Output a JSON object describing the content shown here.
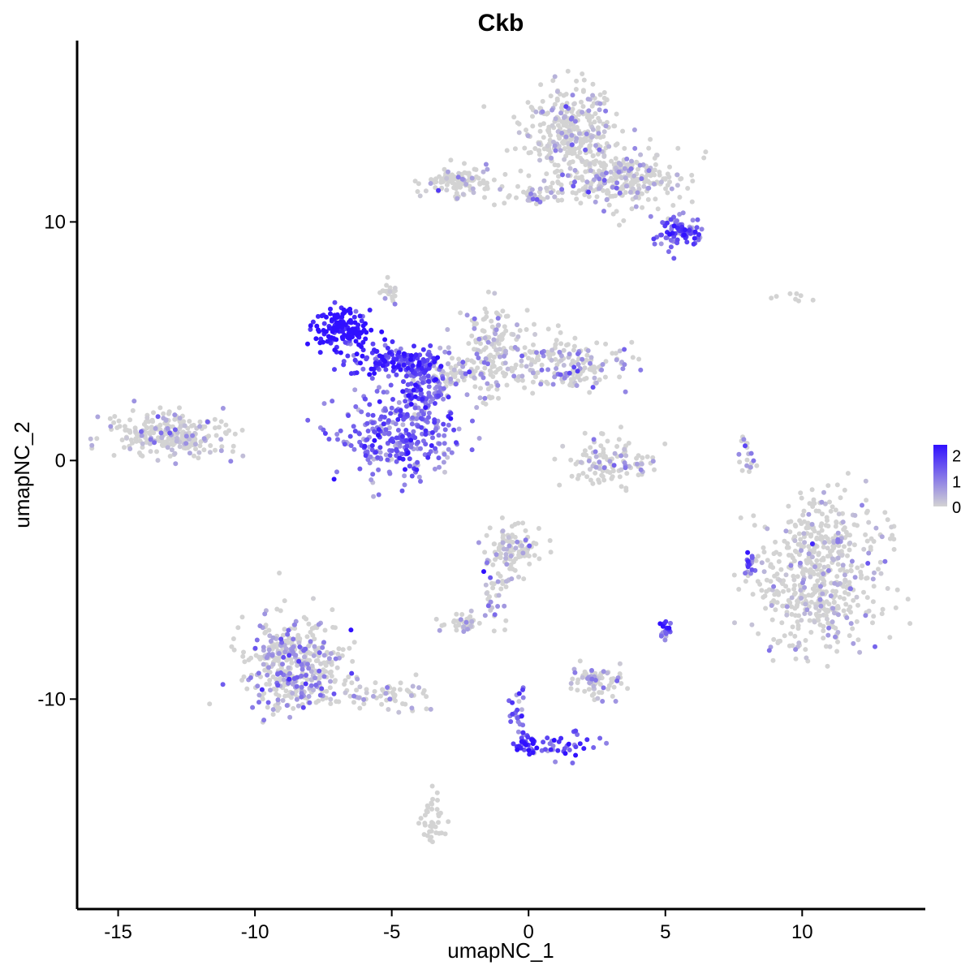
{
  "chart_data": {
    "type": "scatter",
    "title": "Ckb",
    "xlabel": "umapNC_1",
    "ylabel": "umapNC_2",
    "xlim": [
      -16.5,
      14.5
    ],
    "ylim": [
      -18.8,
      17.6
    ],
    "x_ticks": [
      -15,
      -10,
      -5,
      0,
      5,
      10
    ],
    "y_ticks": [
      -10,
      0,
      10
    ],
    "color_scale": {
      "low_color": "#d3d3d3",
      "high_color": "#3010ff",
      "min": 0,
      "max": 2.4,
      "ticks": [
        0,
        1,
        2
      ]
    },
    "grid": false,
    "legend": "right",
    "clusters": [
      {
        "name": "top-right-upper-lobe",
        "cx": 1.5,
        "cy": 13.8,
        "sx": 0.9,
        "sy": 0.9,
        "n": 320,
        "expr": 0.05
      },
      {
        "name": "top-right-body",
        "cx": 3.5,
        "cy": 11.8,
        "sx": 1.2,
        "sy": 0.6,
        "n": 260,
        "expr": 0.35
      },
      {
        "name": "top-right-hotspot",
        "cx": 5.6,
        "cy": 9.6,
        "sx": 0.35,
        "sy": 0.3,
        "n": 90,
        "expr": 1.4
      },
      {
        "name": "top-arm-left",
        "cx": -2.6,
        "cy": 11.7,
        "sx": 0.6,
        "sy": 0.3,
        "n": 110,
        "expr": 0.05
      },
      {
        "name": "top-arm-bridge",
        "cx": 0.2,
        "cy": 11.2,
        "sx": 1.2,
        "sy": 0.2,
        "n": 60,
        "expr": 0.4
      },
      {
        "name": "center-hot-arm",
        "cx": -6.8,
        "cy": 5.5,
        "sx": 0.5,
        "sy": 0.4,
        "n": 140,
        "expr": 2.3
      },
      {
        "name": "center-hot-bridge",
        "cx": -4.8,
        "cy": 4.2,
        "sx": 0.9,
        "sy": 0.35,
        "n": 150,
        "expr": 1.9
      },
      {
        "name": "center-lower-blob",
        "cx": -4.8,
        "cy": 1.0,
        "sx": 1.1,
        "sy": 0.9,
        "n": 300,
        "expr": 1.2
      },
      {
        "name": "center-stem",
        "cx": -3.8,
        "cy": 3.0,
        "sx": 0.4,
        "sy": 0.6,
        "n": 100,
        "expr": 1.5
      },
      {
        "name": "center-upper-right-lobe",
        "cx": -1.2,
        "cy": 4.6,
        "sx": 0.6,
        "sy": 1.0,
        "n": 160,
        "expr": 0.3
      },
      {
        "name": "center-right-arm",
        "cx": 1.5,
        "cy": 4.0,
        "sx": 1.0,
        "sy": 0.5,
        "n": 170,
        "expr": 0.45
      },
      {
        "name": "center-left-faint",
        "cx": -2.8,
        "cy": 3.6,
        "sx": 0.6,
        "sy": 0.5,
        "n": 80,
        "expr": 0.5
      },
      {
        "name": "left-far-cluster",
        "cx": -13.2,
        "cy": 1.1,
        "sx": 1.0,
        "sy": 0.5,
        "n": 260,
        "expr": 0.08
      },
      {
        "name": "small-arc-cluster",
        "cx": 3.0,
        "cy": 0.0,
        "sx": 0.8,
        "sy": 0.5,
        "n": 110,
        "expr": 0.12
      },
      {
        "name": "right-large-cluster",
        "cx": 10.6,
        "cy": -4.8,
        "sx": 1.1,
        "sy": 1.5,
        "n": 560,
        "expr": 0.01
      },
      {
        "name": "lower-left-cluster",
        "cx": -8.6,
        "cy": -8.5,
        "sx": 0.9,
        "sy": 1.0,
        "n": 420,
        "expr": 0.7
      },
      {
        "name": "lower-left-tail",
        "cx": -5.3,
        "cy": -9.8,
        "sx": 0.9,
        "sy": 0.3,
        "n": 70,
        "expr": 0.4
      },
      {
        "name": "lower-center-upper",
        "cx": -0.6,
        "cy": -3.8,
        "sx": 0.5,
        "sy": 0.5,
        "n": 110,
        "expr": 0.2
      },
      {
        "name": "lower-center-tail",
        "cx": -1.2,
        "cy": -5.8,
        "sx": 0.25,
        "sy": 0.6,
        "n": 30,
        "expr": 0.6
      },
      {
        "name": "lower-small-left",
        "cx": -2.5,
        "cy": -6.8,
        "sx": 0.35,
        "sy": 0.2,
        "n": 40,
        "expr": 0.4
      },
      {
        "name": "lower-small-right",
        "cx": 2.4,
        "cy": -9.3,
        "sx": 0.5,
        "sy": 0.35,
        "n": 70,
        "expr": 0.1
      },
      {
        "name": "lower-hot-spot",
        "cx": -0.1,
        "cy": -11.9,
        "sx": 0.2,
        "sy": 0.2,
        "n": 30,
        "expr": 2.0
      },
      {
        "name": "lower-strand",
        "cx": 1.3,
        "cy": -12.0,
        "sx": 0.6,
        "sy": 0.3,
        "n": 40,
        "expr": 1.5
      },
      {
        "name": "lower-strand-upper",
        "cx": -0.4,
        "cy": -10.5,
        "sx": 0.2,
        "sy": 0.5,
        "n": 25,
        "expr": 1.4
      },
      {
        "name": "bottom-trail",
        "cx": -3.5,
        "cy": -14.8,
        "sx": 0.2,
        "sy": 0.6,
        "n": 40,
        "expr": 0.0
      },
      {
        "name": "small-purple-right",
        "cx": 5.0,
        "cy": -7.1,
        "sx": 0.12,
        "sy": 0.2,
        "n": 20,
        "expr": 1.6
      },
      {
        "name": "small-purple-right-2",
        "cx": 8.1,
        "cy": -4.3,
        "sx": 0.12,
        "sy": 0.25,
        "n": 20,
        "expr": 1.3
      },
      {
        "name": "thin-strand-right",
        "cx": 7.9,
        "cy": 0.2,
        "sx": 0.15,
        "sy": 0.5,
        "n": 20,
        "expr": 0.8
      },
      {
        "name": "isolated-top-right",
        "cx": 9.6,
        "cy": 6.8,
        "sx": 0.4,
        "sy": 0.1,
        "n": 8,
        "expr": 0.0
      },
      {
        "name": "isolated-mid",
        "cx": -5.0,
        "cy": 7.0,
        "sx": 0.2,
        "sy": 0.3,
        "n": 20,
        "expr": 0.1
      }
    ]
  }
}
